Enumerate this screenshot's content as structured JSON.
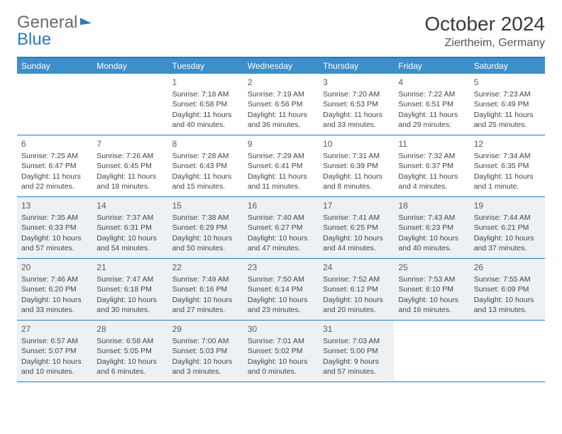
{
  "brand": {
    "part1": "General",
    "part2": "Blue"
  },
  "title": "October 2024",
  "location": "Ziertheim, Germany",
  "colors": {
    "accent": "#3d8fc9",
    "rule": "#2b7bbf",
    "shade": "#eef1f3",
    "text": "#444444",
    "title": "#3a3a3a"
  },
  "dow": [
    "Sunday",
    "Monday",
    "Tuesday",
    "Wednesday",
    "Thursday",
    "Friday",
    "Saturday"
  ],
  "weeks": [
    [
      {
        "n": "",
        "empty": true
      },
      {
        "n": "",
        "empty": true
      },
      {
        "n": "1",
        "sr": "7:18 AM",
        "ss": "6:58 PM",
        "dl": "11 hours and 40 minutes."
      },
      {
        "n": "2",
        "sr": "7:19 AM",
        "ss": "6:56 PM",
        "dl": "11 hours and 36 minutes."
      },
      {
        "n": "3",
        "sr": "7:20 AM",
        "ss": "6:53 PM",
        "dl": "11 hours and 33 minutes."
      },
      {
        "n": "4",
        "sr": "7:22 AM",
        "ss": "6:51 PM",
        "dl": "11 hours and 29 minutes."
      },
      {
        "n": "5",
        "sr": "7:23 AM",
        "ss": "6:49 PM",
        "dl": "11 hours and 25 minutes."
      }
    ],
    [
      {
        "n": "6",
        "sr": "7:25 AM",
        "ss": "6:47 PM",
        "dl": "11 hours and 22 minutes."
      },
      {
        "n": "7",
        "sr": "7:26 AM",
        "ss": "6:45 PM",
        "dl": "11 hours and 18 minutes."
      },
      {
        "n": "8",
        "sr": "7:28 AM",
        "ss": "6:43 PM",
        "dl": "11 hours and 15 minutes."
      },
      {
        "n": "9",
        "sr": "7:29 AM",
        "ss": "6:41 PM",
        "dl": "11 hours and 11 minutes."
      },
      {
        "n": "10",
        "sr": "7:31 AM",
        "ss": "6:39 PM",
        "dl": "11 hours and 8 minutes."
      },
      {
        "n": "11",
        "sr": "7:32 AM",
        "ss": "6:37 PM",
        "dl": "11 hours and 4 minutes."
      },
      {
        "n": "12",
        "sr": "7:34 AM",
        "ss": "6:35 PM",
        "dl": "11 hours and 1 minute."
      }
    ],
    [
      {
        "n": "13",
        "sr": "7:35 AM",
        "ss": "6:33 PM",
        "dl": "10 hours and 57 minutes.",
        "shade": true
      },
      {
        "n": "14",
        "sr": "7:37 AM",
        "ss": "6:31 PM",
        "dl": "10 hours and 54 minutes.",
        "shade": true
      },
      {
        "n": "15",
        "sr": "7:38 AM",
        "ss": "6:29 PM",
        "dl": "10 hours and 50 minutes.",
        "shade": true
      },
      {
        "n": "16",
        "sr": "7:40 AM",
        "ss": "6:27 PM",
        "dl": "10 hours and 47 minutes.",
        "shade": true
      },
      {
        "n": "17",
        "sr": "7:41 AM",
        "ss": "6:25 PM",
        "dl": "10 hours and 44 minutes.",
        "shade": true
      },
      {
        "n": "18",
        "sr": "7:43 AM",
        "ss": "6:23 PM",
        "dl": "10 hours and 40 minutes.",
        "shade": true
      },
      {
        "n": "19",
        "sr": "7:44 AM",
        "ss": "6:21 PM",
        "dl": "10 hours and 37 minutes.",
        "shade": true
      }
    ],
    [
      {
        "n": "20",
        "sr": "7:46 AM",
        "ss": "6:20 PM",
        "dl": "10 hours and 33 minutes.",
        "shade": true
      },
      {
        "n": "21",
        "sr": "7:47 AM",
        "ss": "6:18 PM",
        "dl": "10 hours and 30 minutes.",
        "shade": true
      },
      {
        "n": "22",
        "sr": "7:49 AM",
        "ss": "6:16 PM",
        "dl": "10 hours and 27 minutes.",
        "shade": true
      },
      {
        "n": "23",
        "sr": "7:50 AM",
        "ss": "6:14 PM",
        "dl": "10 hours and 23 minutes.",
        "shade": true
      },
      {
        "n": "24",
        "sr": "7:52 AM",
        "ss": "6:12 PM",
        "dl": "10 hours and 20 minutes.",
        "shade": true
      },
      {
        "n": "25",
        "sr": "7:53 AM",
        "ss": "6:10 PM",
        "dl": "10 hours and 16 minutes.",
        "shade": true
      },
      {
        "n": "26",
        "sr": "7:55 AM",
        "ss": "6:09 PM",
        "dl": "10 hours and 13 minutes.",
        "shade": true
      }
    ],
    [
      {
        "n": "27",
        "sr": "6:57 AM",
        "ss": "5:07 PM",
        "dl": "10 hours and 10 minutes.",
        "shade": true
      },
      {
        "n": "28",
        "sr": "6:58 AM",
        "ss": "5:05 PM",
        "dl": "10 hours and 6 minutes.",
        "shade": true
      },
      {
        "n": "29",
        "sr": "7:00 AM",
        "ss": "5:03 PM",
        "dl": "10 hours and 3 minutes.",
        "shade": true
      },
      {
        "n": "30",
        "sr": "7:01 AM",
        "ss": "5:02 PM",
        "dl": "10 hours and 0 minutes.",
        "shade": true
      },
      {
        "n": "31",
        "sr": "7:03 AM",
        "ss": "5:00 PM",
        "dl": "9 hours and 57 minutes.",
        "shade": true
      },
      {
        "n": "",
        "empty": true
      },
      {
        "n": "",
        "empty": true
      }
    ]
  ],
  "labels": {
    "sunrise": "Sunrise:",
    "sunset": "Sunset:",
    "daylight": "Daylight:"
  }
}
